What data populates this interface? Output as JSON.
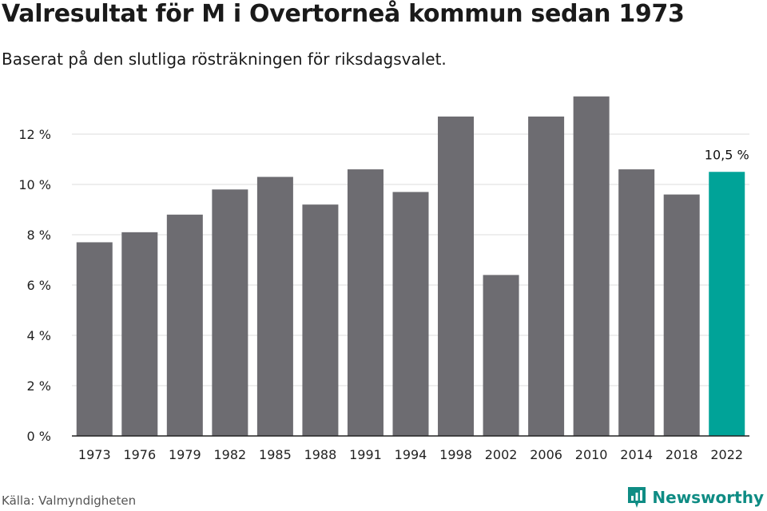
{
  "title": "Valresultat för M i Overtorneå kommun sedan 1973",
  "subtitle": "Baserat på den slutliga rösträkningen för riksdagsvalet.",
  "source": "Källa: Valmyndigheten",
  "brand": {
    "name": "Newsworthy",
    "icon": "newsworthy-logo-icon",
    "color": "#0f8c84"
  },
  "colors": {
    "bar": "#6d6c71",
    "highlight": "#00a398",
    "grid": "#dddddd",
    "axis": "#222222"
  },
  "chart_data": {
    "type": "bar",
    "title": "Valresultat för M i Overtorneå kommun sedan 1973",
    "subtitle": "Baserat på den slutliga rösträkningen för riksdagsvalet.",
    "xlabel": "",
    "ylabel": "",
    "categories": [
      "1973",
      "1976",
      "1979",
      "1982",
      "1985",
      "1988",
      "1991",
      "1994",
      "1998",
      "2002",
      "2006",
      "2010",
      "2014",
      "2018",
      "2022"
    ],
    "values": [
      7.7,
      8.1,
      8.8,
      9.8,
      10.3,
      9.2,
      10.6,
      9.7,
      12.7,
      6.4,
      12.7,
      13.5,
      10.6,
      9.6,
      10.5
    ],
    "ylim": [
      0,
      14
    ],
    "yticks": [
      0,
      2,
      4,
      6,
      8,
      10,
      12
    ],
    "ytick_labels": [
      "0 %",
      "2 %",
      "4 %",
      "6 %",
      "8 %",
      "10 %",
      "12 %"
    ],
    "grid": true,
    "highlight_index": 14,
    "annotations": [
      {
        "category": "2022",
        "text": "10,5 %"
      }
    ]
  }
}
